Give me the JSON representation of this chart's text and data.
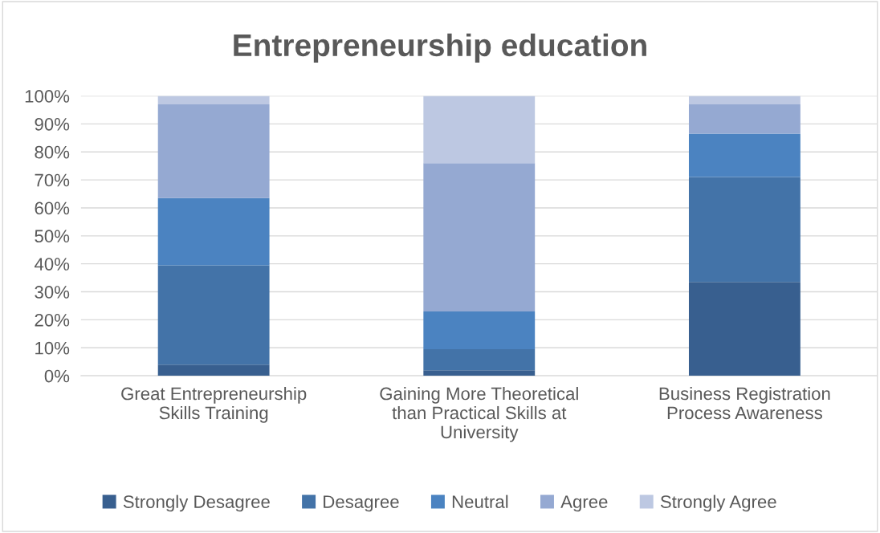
{
  "chart_data": {
    "type": "bar",
    "stacked": true,
    "title": "Entrepreneurship education",
    "categories": [
      "Great Entrepreneurship\nSkills Training",
      "Gaining More Theoretical\nthan Practical Skills at\nUniversity",
      "Business Registration\nProcess Awareness"
    ],
    "series": [
      {
        "name": "Strongly Desagree",
        "color": "#385f8f",
        "values": [
          4,
          2,
          33.5
        ]
      },
      {
        "name": "Desagree",
        "color": "#4373a8",
        "values": [
          35.5,
          7.5,
          37.5
        ]
      },
      {
        "name": "Neutral",
        "color": "#4b83c1",
        "values": [
          24,
          13.5,
          15.5
        ]
      },
      {
        "name": "Agree",
        "color": "#95a9d2",
        "values": [
          33.5,
          53,
          10.5
        ]
      },
      {
        "name": "Strongly Agree",
        "color": "#bdc8e2",
        "values": [
          3,
          24,
          3
        ]
      }
    ],
    "ylim": [
      0,
      100
    ],
    "yticks": [
      {
        "value": 0,
        "label": "0%"
      },
      {
        "value": 10,
        "label": "10%"
      },
      {
        "value": 20,
        "label": "20%"
      },
      {
        "value": 30,
        "label": "30%"
      },
      {
        "value": 40,
        "label": "40%"
      },
      {
        "value": 50,
        "label": "50%"
      },
      {
        "value": 60,
        "label": "60%"
      },
      {
        "value": 70,
        "label": "70%"
      },
      {
        "value": 80,
        "label": "80%"
      },
      {
        "value": 90,
        "label": "90%"
      },
      {
        "value": 100,
        "label": "100%"
      }
    ],
    "grid": "y",
    "legend": "bottom"
  }
}
